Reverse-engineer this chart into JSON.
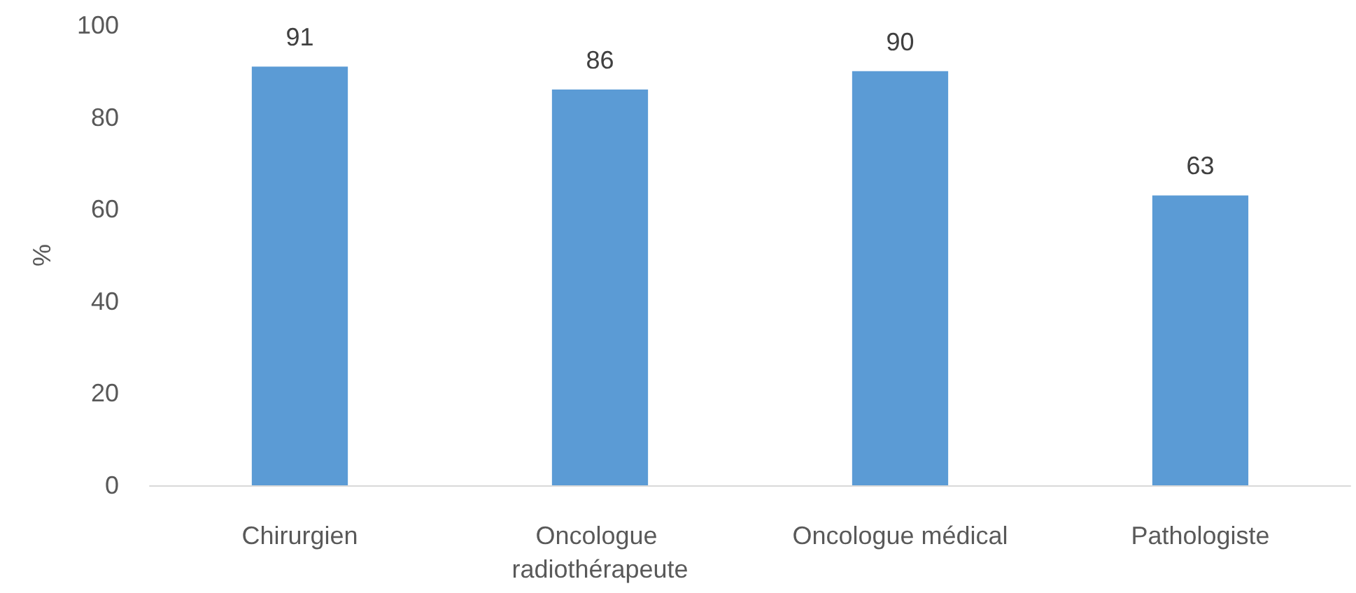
{
  "chart_data": {
    "type": "bar",
    "ylabel": "%",
    "categories": [
      "Chirurgien",
      "Oncologue radiothérapeute",
      "Oncologue médical",
      "Pathologiste"
    ],
    "values": [
      91,
      86,
      90,
      63
    ],
    "color": "#5b9bd5",
    "ylim": [
      0,
      100
    ],
    "yticks": [
      0,
      20,
      40,
      60,
      80,
      100
    ],
    "grid": false,
    "data_labels": true
  }
}
